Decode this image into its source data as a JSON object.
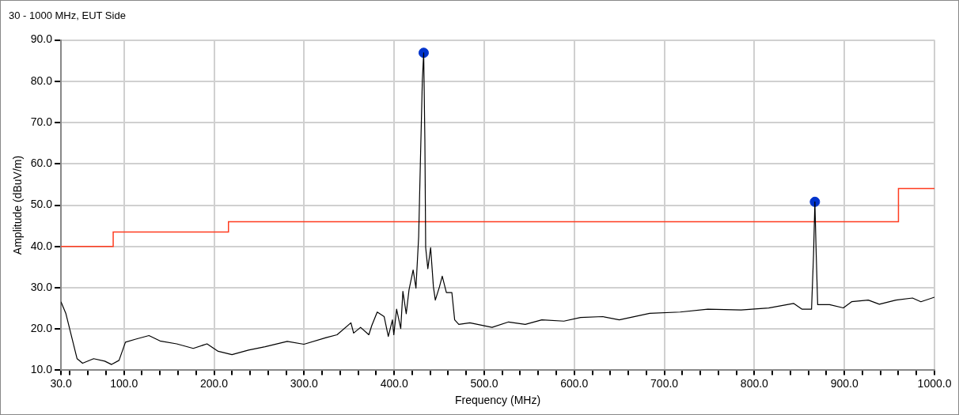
{
  "chart_data": {
    "type": "line",
    "title": "30 - 1000 MHz, EUT Side",
    "xlabel": "Frequency (MHz)",
    "ylabel": "Amplitude (dBuV/m)",
    "xlim": [
      30,
      1000
    ],
    "ylim": [
      10,
      90
    ],
    "xticks": [
      {
        "value": 30,
        "label": "30.0"
      },
      {
        "value": 40,
        "label": null
      },
      {
        "value": 60,
        "label": null
      },
      {
        "value": 80,
        "label": null
      },
      {
        "value": 100,
        "label": "100.0"
      },
      {
        "value": 120,
        "label": null
      },
      {
        "value": 140,
        "label": null
      },
      {
        "value": 160,
        "label": null
      },
      {
        "value": 180,
        "label": null
      },
      {
        "value": 200,
        "label": "200.0"
      },
      {
        "value": 220,
        "label": null
      },
      {
        "value": 240,
        "label": null
      },
      {
        "value": 260,
        "label": null
      },
      {
        "value": 280,
        "label": null
      },
      {
        "value": 300,
        "label": "300.0"
      },
      {
        "value": 320,
        "label": null
      },
      {
        "value": 340,
        "label": null
      },
      {
        "value": 360,
        "label": null
      },
      {
        "value": 380,
        "label": null
      },
      {
        "value": 400,
        "label": "400.0"
      },
      {
        "value": 420,
        "label": null
      },
      {
        "value": 440,
        "label": null
      },
      {
        "value": 460,
        "label": null
      },
      {
        "value": 480,
        "label": null
      },
      {
        "value": 500,
        "label": "500.0"
      },
      {
        "value": 520,
        "label": null
      },
      {
        "value": 540,
        "label": null
      },
      {
        "value": 560,
        "label": null
      },
      {
        "value": 580,
        "label": null
      },
      {
        "value": 600,
        "label": "600.0"
      },
      {
        "value": 620,
        "label": null
      },
      {
        "value": 640,
        "label": null
      },
      {
        "value": 660,
        "label": null
      },
      {
        "value": 680,
        "label": null
      },
      {
        "value": 700,
        "label": "700.0"
      },
      {
        "value": 720,
        "label": null
      },
      {
        "value": 740,
        "label": null
      },
      {
        "value": 760,
        "label": null
      },
      {
        "value": 780,
        "label": null
      },
      {
        "value": 800,
        "label": "800.0"
      },
      {
        "value": 820,
        "label": null
      },
      {
        "value": 840,
        "label": null
      },
      {
        "value": 860,
        "label": null
      },
      {
        "value": 880,
        "label": null
      },
      {
        "value": 900,
        "label": "900.0"
      },
      {
        "value": 920,
        "label": null
      },
      {
        "value": 940,
        "label": null
      },
      {
        "value": 960,
        "label": null
      },
      {
        "value": 980,
        "label": null
      },
      {
        "value": 1000,
        "label": "1000.0"
      }
    ],
    "yticks": [
      {
        "value": 10,
        "label": "10.0"
      },
      {
        "value": 20,
        "label": "20.0"
      },
      {
        "value": 30,
        "label": "30.0"
      },
      {
        "value": 40,
        "label": "40.0"
      },
      {
        "value": 50,
        "label": "50.0"
      },
      {
        "value": 60,
        "label": "60.0"
      },
      {
        "value": 70,
        "label": "70.0"
      },
      {
        "value": 80,
        "label": "80.0"
      },
      {
        "value": 90,
        "label": "90.0"
      }
    ],
    "grid": true,
    "legend": false,
    "series": [
      {
        "type": "line",
        "color": "#000000",
        "x": [
          30,
          35.5,
          47.9,
          54,
          66.3,
          78.6,
          86.2,
          94.5,
          101.6,
          112.4,
          127.7,
          140,
          158.5,
          176.9,
          192.2,
          204.6,
          219.9,
          238.3,
          256.7,
          281.3,
          299.8,
          324.4,
          336.6,
          352,
          355,
          362.7,
          371.9,
          375.1,
          381.2,
          388.9,
          393.5,
          398.1,
          399.6,
          402.7,
          407.3,
          409.7,
          413.4,
          416.5,
          421.1,
          424.2,
          427.2,
          429.1,
          431.3,
          432.8,
          434.1,
          435,
          437.4,
          440.5,
          443.6,
          445.7,
          450.3,
          453.4,
          458,
          464.1,
          467.2,
          471.8,
          484.1,
          508.7,
          527.1,
          545.6,
          564,
          588.5,
          607,
          631.6,
          650,
          683.8,
          717.6,
          748.3,
          785.2,
          815.9,
          843.5,
          852.7,
          863.5,
          865.7,
          867.2,
          868.7,
          870.3,
          883.5,
          898.8,
          908,
          926.5,
          938.8,
          957.2,
          975.6,
          984.9,
          1000
        ],
        "values": [
          26.6,
          23.7,
          12.8,
          11.7,
          12.8,
          12.2,
          11.4,
          12.4,
          16.8,
          17.5,
          18.4,
          17.1,
          16.4,
          15.3,
          16.4,
          14.6,
          13.8,
          14.9,
          15.7,
          17,
          16.3,
          17.9,
          18.6,
          21.5,
          19,
          20.4,
          18.6,
          20.8,
          24.1,
          23,
          18.2,
          22.2,
          18.6,
          24.8,
          20.1,
          29.1,
          23.7,
          29.5,
          34.3,
          29.9,
          42.3,
          60.1,
          80.2,
          86.9,
          66,
          39.7,
          34.6,
          39.7,
          30.2,
          27,
          30.2,
          32.8,
          28.8,
          28.8,
          22.2,
          21.1,
          21.5,
          20.4,
          21.7,
          21.1,
          22.2,
          21.9,
          22.8,
          23,
          22.2,
          23.8,
          24.1,
          24.8,
          24.6,
          25.1,
          26.2,
          24.8,
          24.8,
          37.9,
          50.8,
          37.9,
          25.9,
          25.9,
          25.1,
          26.6,
          27,
          26,
          27,
          27.5,
          26.6,
          27.7
        ]
      },
      {
        "type": "step",
        "color": "#ff3b1f",
        "x": [
          30,
          88,
          216,
          960,
          1000
        ],
        "values": [
          40,
          43.5,
          46,
          54,
          54
        ]
      },
      {
        "type": "scatter",
        "color": "#0033cc",
        "marker": "circle",
        "x": [
          432.8,
          867.2
        ],
        "values": [
          86.9,
          50.8
        ]
      }
    ]
  }
}
